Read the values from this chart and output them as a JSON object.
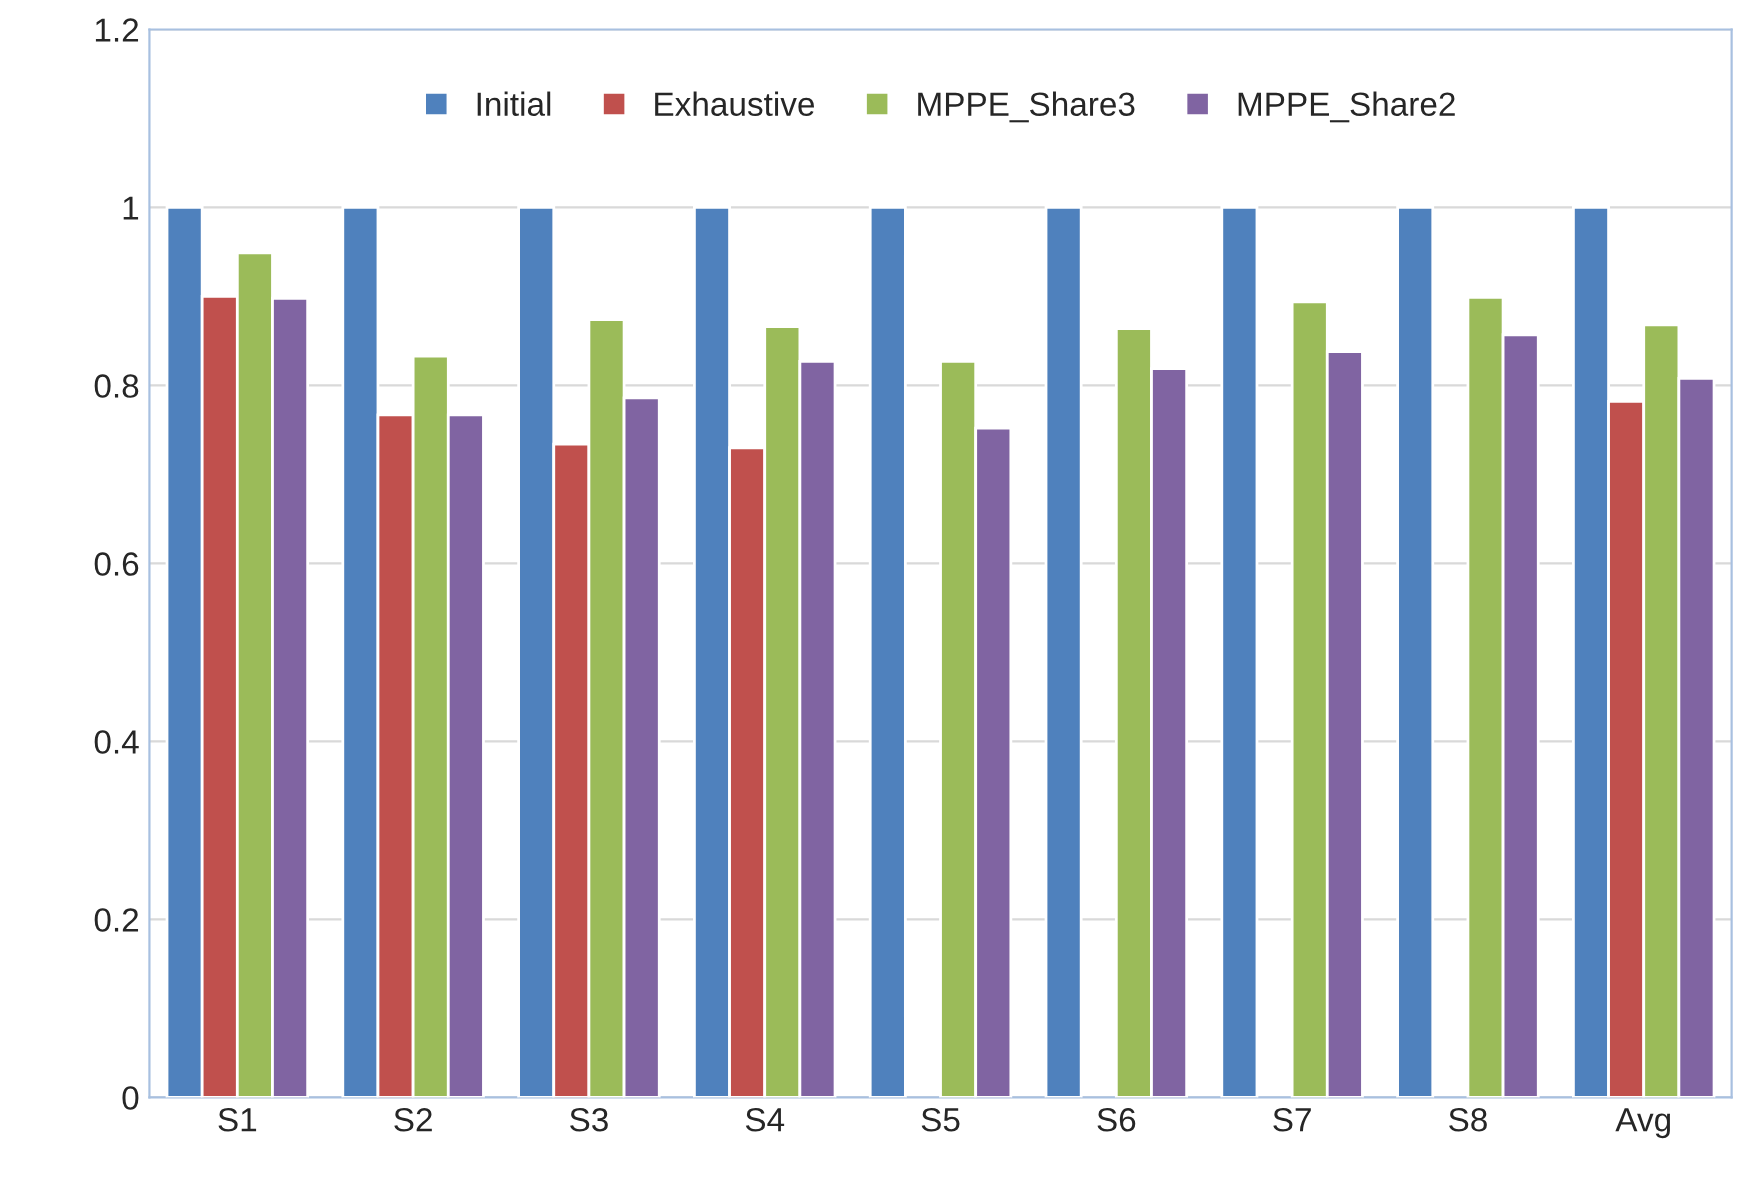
{
  "chart_data": {
    "type": "bar",
    "categories": [
      "S1",
      "S2",
      "S3",
      "S4",
      "S5",
      "S6",
      "S7",
      "S8",
      "Avg"
    ],
    "series": [
      {
        "name": "Initial",
        "color": "#4f81bd",
        "values": [
          1,
          1,
          1,
          1,
          1,
          1,
          1,
          1,
          1
        ]
      },
      {
        "name": "Exhaustive",
        "color": "#c0504d",
        "values": [
          0.9,
          0.767,
          0.734,
          0.73,
          null,
          null,
          null,
          null,
          0.782
        ]
      },
      {
        "name": "MPPE_Share3",
        "color": "#9bbb59",
        "values": [
          0.949,
          0.833,
          0.874,
          0.866,
          0.827,
          0.864,
          0.894,
          0.899,
          0.868
        ]
      },
      {
        "name": "MPPE_Share2",
        "color": "#8064a2",
        "values": [
          0.898,
          0.767,
          0.786,
          0.827,
          0.752,
          0.819,
          0.838,
          0.857,
          0.808
        ]
      }
    ],
    "ylim": [
      0,
      1.2
    ],
    "yticks": [
      0,
      0.2,
      0.4,
      0.6,
      0.8,
      1,
      1.2
    ],
    "grid": "y",
    "legend": "top"
  }
}
